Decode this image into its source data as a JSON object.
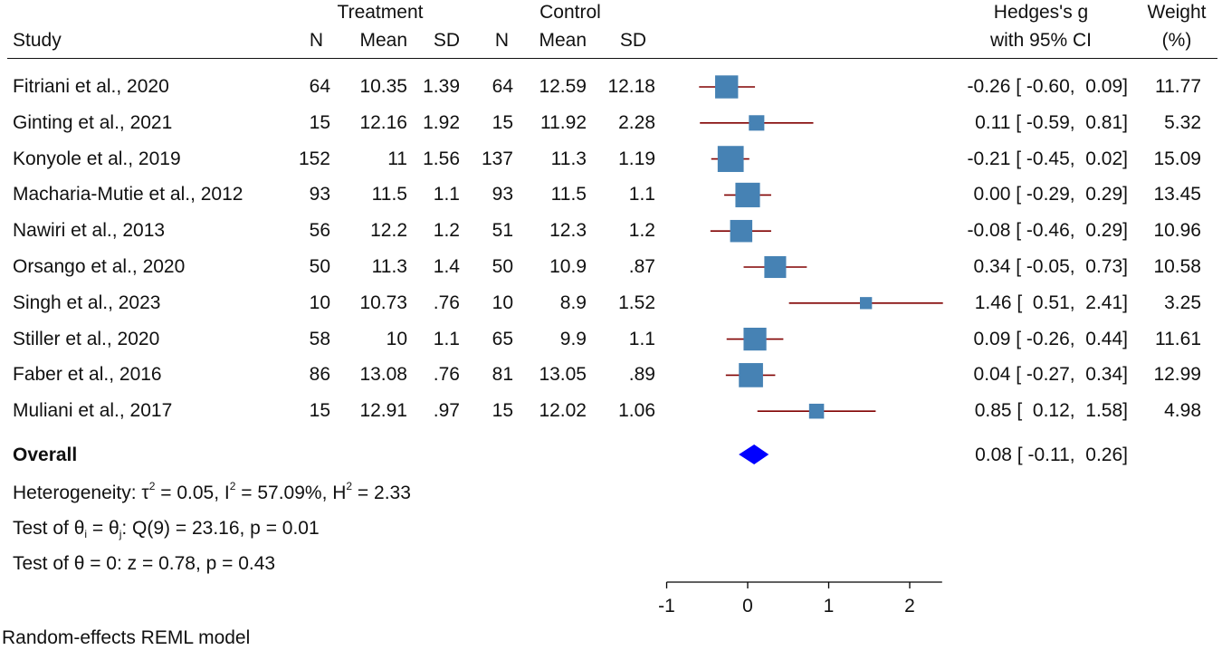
{
  "headers": {
    "treatment": "Treatment",
    "control": "Control",
    "study": "Study",
    "n": "N",
    "mean": "Mean",
    "sd": "SD",
    "effect_line1": "Hedges's g",
    "effect_line2": "with 95% CI",
    "weight_line1": "Weight",
    "weight_line2": "(%)"
  },
  "studies": [
    {
      "study": "Fitriani et al., 2020",
      "tn": "64",
      "tmean": "10.35",
      "tsd": "1.39",
      "cn": "64",
      "cmean": "12.59",
      "csd": "12.18",
      "ci_text": "-0.26 [ -0.60,  0.09]",
      "weight": "11.77"
    },
    {
      "study": "Ginting et al., 2021",
      "tn": "15",
      "tmean": "12.16",
      "tsd": "1.92",
      "cn": "15",
      "cmean": "11.92",
      "csd": "2.28",
      "ci_text": "0.11 [ -0.59,  0.81]",
      "weight": "5.32"
    },
    {
      "study": "Konyole et al., 2019",
      "tn": "152",
      "tmean": "11",
      "tsd": "1.56",
      "cn": "137",
      "cmean": "11.3",
      "csd": "1.19",
      "ci_text": "-0.21 [ -0.45,  0.02]",
      "weight": "15.09"
    },
    {
      "study": "Macharia-Mutie et al., 2012",
      "tn": "93",
      "tmean": "11.5",
      "tsd": "1.1",
      "cn": "93",
      "cmean": "11.5",
      "csd": "1.1",
      "ci_text": "0.00 [ -0.29,  0.29]",
      "weight": "13.45"
    },
    {
      "study": "Nawiri et al., 2013",
      "tn": "56",
      "tmean": "12.2",
      "tsd": "1.2",
      "cn": "51",
      "cmean": "12.3",
      "csd": "1.2",
      "ci_text": "-0.08 [ -0.46,  0.29]",
      "weight": "10.96"
    },
    {
      "study": "Orsango et al., 2020",
      "tn": "50",
      "tmean": "11.3",
      "tsd": "1.4",
      "cn": "50",
      "cmean": "10.9",
      "csd": ".87",
      "ci_text": "0.34 [ -0.05,  0.73]",
      "weight": "10.58"
    },
    {
      "study": "Singh et al., 2023",
      "tn": "10",
      "tmean": "10.73",
      "tsd": ".76",
      "cn": "10",
      "cmean": "8.9",
      "csd": "1.52",
      "ci_text": "1.46 [  0.51,  2.41]",
      "weight": "3.25"
    },
    {
      "study": "Stiller et al., 2020",
      "tn": "58",
      "tmean": "10",
      "tsd": "1.1",
      "cn": "65",
      "cmean": "9.9",
      "csd": "1.1",
      "ci_text": "0.09 [ -0.26,  0.44]",
      "weight": "11.61"
    },
    {
      "study": "Faber et al., 2016",
      "tn": "86",
      "tmean": "13.08",
      "tsd": ".76",
      "cn": "81",
      "cmean": "13.05",
      "csd": ".89",
      "ci_text": "0.04 [ -0.27,  0.34]",
      "weight": "12.99"
    },
    {
      "study": "Muliani et al., 2017",
      "tn": "15",
      "tmean": "12.91",
      "tsd": ".97",
      "cn": "15",
      "cmean": "12.02",
      "csd": "1.06",
      "ci_text": "0.85 [  0.12,  1.58]",
      "weight": "4.98"
    }
  ],
  "overall": {
    "label": "Overall",
    "ci_text": "0.08 [ -0.11,  0.26]"
  },
  "stats": {
    "het_prefix": "Heterogeneity: τ",
    "het_tau_sup": "2",
    "het_tau_val": " = 0.05, I",
    "het_i_sup": "2",
    "het_i_val": " = 57.09%, H",
    "het_h_sup": "2",
    "het_h_val": " = 2.33",
    "test1_a": "Test of θ",
    "test1_sub_i": "i",
    "test1_b": " = θ",
    "test1_sub_j": "j",
    "test1_c": ": Q(9) = 23.16, p = 0.01",
    "test2": "Test of θ = 0: z = 0.78, p = 0.43"
  },
  "footer": "Random-effects REML model",
  "colors": {
    "marker": "#4682b4",
    "ci_line": "#800000",
    "overall": "#0000ff",
    "axis": "#000000"
  },
  "chart_data": {
    "type": "forest",
    "xlabel": "",
    "xlim": [
      -1,
      2.4
    ],
    "xticks": [
      -1,
      0,
      1,
      2
    ],
    "estimates": [
      -0.26,
      0.11,
      -0.21,
      0.0,
      -0.08,
      0.34,
      1.46,
      0.09,
      0.04,
      0.85
    ],
    "ci_low": [
      -0.6,
      -0.59,
      -0.45,
      -0.29,
      -0.46,
      -0.05,
      0.51,
      -0.26,
      -0.27,
      0.12
    ],
    "ci_high": [
      0.09,
      0.81,
      0.02,
      0.29,
      0.29,
      0.73,
      2.41,
      0.44,
      0.34,
      1.58
    ],
    "weights": [
      11.77,
      5.32,
      15.09,
      13.45,
      10.96,
      10.58,
      3.25,
      11.61,
      12.99,
      4.98
    ],
    "overall": {
      "estimate": 0.08,
      "ci_low": -0.11,
      "ci_high": 0.26
    }
  }
}
